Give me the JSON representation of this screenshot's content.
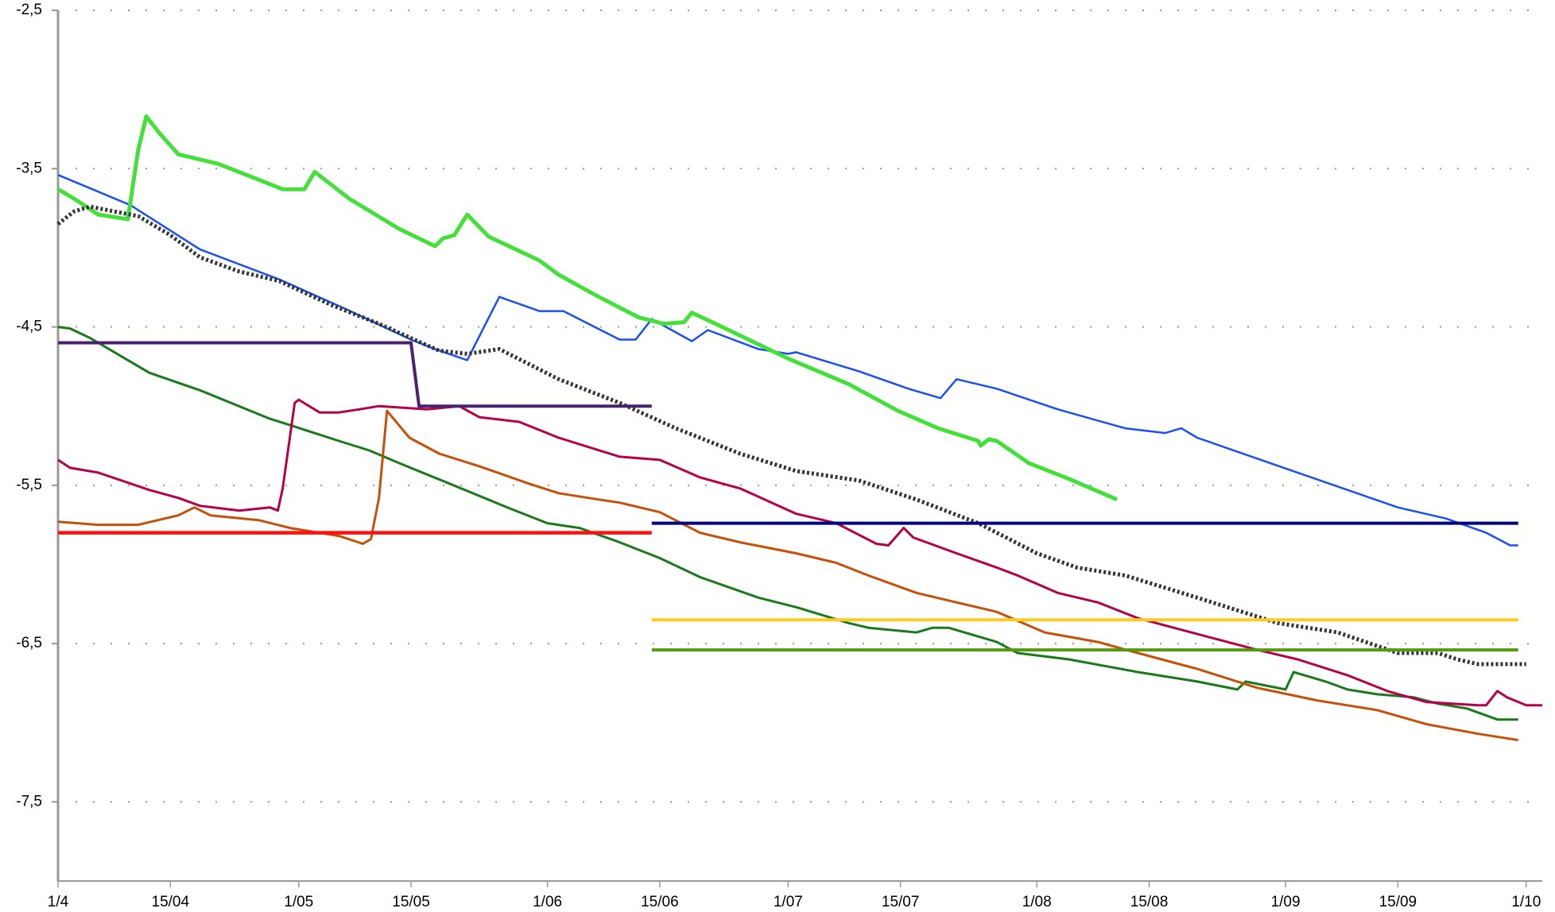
{
  "chart_data": {
    "type": "line",
    "xlim": [
      0,
      185
    ],
    "xticks": [
      {
        "value": 0,
        "label": "1/4"
      },
      {
        "value": 14,
        "label": "15/04"
      },
      {
        "value": 30,
        "label": "1/05"
      },
      {
        "value": 44,
        "label": "15/05"
      },
      {
        "value": 61,
        "label": "1/06"
      },
      {
        "value": 75,
        "label": "15/06"
      },
      {
        "value": 91,
        "label": "1/07"
      },
      {
        "value": 105,
        "label": "15/07"
      },
      {
        "value": 122,
        "label": "1/08"
      },
      {
        "value": 136,
        "label": "15/08"
      },
      {
        "value": 153,
        "label": "1/09"
      },
      {
        "value": 167,
        "label": "15/09"
      },
      {
        "value": 183,
        "label": "1/10"
      }
    ],
    "ylim": [
      -8,
      -2.5
    ],
    "yticks": [
      {
        "value": -2.5,
        "label": "-2,5"
      },
      {
        "value": -3.5,
        "label": "-3,5"
      },
      {
        "value": -4.5,
        "label": "-4,5"
      },
      {
        "value": -5.5,
        "label": "-5,5"
      },
      {
        "value": -6.5,
        "label": "-6,5"
      },
      {
        "value": -7.5,
        "label": "-7,5"
      }
    ],
    "grid": true,
    "series": [
      {
        "color": "#1a4ff0",
        "width": 2.5,
        "style": "solid",
        "x": [
          0,
          9,
          17.7,
          27.6,
          36,
          44,
          47,
          51,
          53,
          55,
          60,
          63,
          70,
          72,
          74,
          79,
          81,
          87.3,
          91,
          92,
          99.8,
          106,
          110,
          112,
          117,
          124.6,
          133,
          138,
          140,
          142,
          154.5,
          167,
          173,
          178,
          181,
          182
        ],
        "values": [
          -3.54,
          -3.73,
          -4.01,
          -4.2,
          -4.39,
          -4.58,
          -4.64,
          -4.71,
          -4.51,
          -4.31,
          -4.4,
          -4.4,
          -4.58,
          -4.58,
          -4.45,
          -4.59,
          -4.52,
          -4.64,
          -4.67,
          -4.66,
          -4.78,
          -4.89,
          -4.95,
          -4.83,
          -4.89,
          -5.02,
          -5.14,
          -5.17,
          -5.14,
          -5.2,
          -5.42,
          -5.64,
          -5.71,
          -5.8,
          -5.88,
          -5.88
        ]
      },
      {
        "color": "#44e03a",
        "width": 5,
        "style": "solid",
        "x": [
          0,
          2,
          5,
          8.7,
          10,
          11,
          12.7,
          15,
          20,
          25,
          28,
          30.7,
          32,
          36.3,
          42.5,
          47,
          48,
          49.4,
          51,
          53.7,
          60,
          62.4,
          67.4,
          72.4,
          75.5,
          78,
          79,
          83.6,
          91,
          98.5,
          104.7,
          109.7,
          114.7,
          115,
          116,
          117,
          121,
          126,
          132
        ],
        "values": [
          -3.63,
          -3.69,
          -3.79,
          -3.82,
          -3.38,
          -3.17,
          -3.28,
          -3.41,
          -3.47,
          -3.57,
          -3.63,
          -3.63,
          -3.52,
          -3.69,
          -3.88,
          -3.99,
          -3.94,
          -3.92,
          -3.79,
          -3.93,
          -4.08,
          -4.17,
          -4.31,
          -4.44,
          -4.48,
          -4.47,
          -4.41,
          -4.52,
          -4.7,
          -4.86,
          -5.03,
          -5.14,
          -5.22,
          -5.25,
          -5.21,
          -5.22,
          -5.36,
          -5.46,
          -5.59
        ]
      },
      {
        "color": "#333333",
        "width": 5,
        "style": "dotted",
        "x": [
          0,
          2,
          4,
          10,
          14,
          17.7,
          22.6,
          27.6,
          34,
          40,
          47.5,
          51,
          55,
          62.4,
          70,
          77,
          85,
          92,
          99.8,
          107,
          114.7,
          122,
          127,
          133,
          142,
          152,
          159.5,
          167,
          172,
          174.4,
          177,
          183
        ],
        "values": [
          -3.85,
          -3.77,
          -3.74,
          -3.8,
          -3.92,
          -4.06,
          -4.15,
          -4.21,
          -4.36,
          -4.48,
          -4.65,
          -4.67,
          -4.64,
          -4.83,
          -4.98,
          -5.14,
          -5.3,
          -5.41,
          -5.47,
          -5.59,
          -5.74,
          -5.93,
          -6.02,
          -6.07,
          -6.21,
          -6.37,
          -6.43,
          -6.56,
          -6.56,
          -6.6,
          -6.63,
          -6.63
        ]
      },
      {
        "color": "#1a7a1a",
        "width": 3,
        "style": "solid",
        "x": [
          0,
          1.5,
          4,
          11.4,
          17.7,
          26.4,
          28.9,
          35,
          38.8,
          42.5,
          48.8,
          56,
          61,
          65,
          70,
          75,
          80,
          87.3,
          92,
          98.5,
          101,
          107,
          109,
          111,
          117,
          119.6,
          126,
          134.6,
          142,
          147,
          148,
          152,
          153,
          154,
          158,
          160.7,
          164.4,
          169,
          172,
          175.6,
          179.4,
          182
        ],
        "values": [
          -4.5,
          -4.51,
          -4.57,
          -4.79,
          -4.9,
          -5.08,
          -5.12,
          -5.22,
          -5.28,
          -5.36,
          -5.49,
          -5.64,
          -5.74,
          -5.77,
          -5.86,
          -5.96,
          -6.08,
          -6.21,
          -6.27,
          -6.37,
          -6.4,
          -6.43,
          -6.4,
          -6.4,
          -6.49,
          -6.56,
          -6.6,
          -6.68,
          -6.74,
          -6.79,
          -6.74,
          -6.78,
          -6.79,
          -6.68,
          -6.74,
          -6.79,
          -6.82,
          -6.84,
          -6.88,
          -6.91,
          -6.98,
          -6.98
        ]
      },
      {
        "color": "#b5004a",
        "width": 3,
        "style": "solid",
        "x": [
          0,
          1.5,
          5,
          11.4,
          15,
          17.7,
          22.6,
          26.4,
          27.4,
          28,
          29.5,
          30,
          32.6,
          35,
          37.6,
          40,
          46,
          50,
          52.5,
          57.5,
          62.4,
          70,
          75,
          80,
          85,
          92,
          97,
          102,
          103.5,
          105.4,
          106.6,
          112,
          117,
          119.6,
          124.6,
          129.6,
          134.6,
          142,
          149.5,
          154.5,
          160.7,
          165.7,
          170.6,
          177,
          178,
          179.4,
          180.6,
          183,
          185
        ],
        "values": [
          -5.34,
          -5.39,
          -5.42,
          -5.53,
          -5.58,
          -5.63,
          -5.66,
          -5.64,
          -5.66,
          -5.52,
          -4.98,
          -4.96,
          -5.04,
          -5.04,
          -5.02,
          -5.0,
          -5.02,
          -5.0,
          -5.07,
          -5.1,
          -5.2,
          -5.32,
          -5.34,
          -5.45,
          -5.52,
          -5.68,
          -5.74,
          -5.87,
          -5.88,
          -5.77,
          -5.83,
          -5.93,
          -6.02,
          -6.07,
          -6.18,
          -6.24,
          -6.34,
          -6.44,
          -6.54,
          -6.6,
          -6.7,
          -6.8,
          -6.87,
          -6.89,
          -6.89,
          -6.8,
          -6.84,
          -6.89,
          -6.89
        ]
      },
      {
        "color": "#c55008",
        "width": 3,
        "style": "solid",
        "x": [
          0,
          5,
          10,
          15,
          17,
          19,
          25,
          28.9,
          35,
          38,
          39,
          40,
          41,
          43.8,
          47.5,
          52.5,
          58.7,
          62.4,
          67.4,
          70,
          75,
          80,
          85,
          92,
          97,
          101,
          107,
          112,
          117,
          123,
          129.6,
          134.6,
          142,
          149.5,
          157,
          164.4,
          170.6,
          177,
          182
        ],
        "values": [
          -5.73,
          -5.75,
          -5.75,
          -5.69,
          -5.64,
          -5.69,
          -5.72,
          -5.77,
          -5.82,
          -5.87,
          -5.84,
          -5.58,
          -5.03,
          -5.2,
          -5.3,
          -5.38,
          -5.49,
          -5.55,
          -5.59,
          -5.61,
          -5.67,
          -5.8,
          -5.86,
          -5.93,
          -5.99,
          -6.07,
          -6.18,
          -6.24,
          -6.3,
          -6.43,
          -6.49,
          -6.56,
          -6.66,
          -6.78,
          -6.86,
          -6.92,
          -7.01,
          -7.07,
          -7.11
        ]
      },
      {
        "color": "#4a2070",
        "width": 4,
        "style": "solid",
        "x": [
          0,
          44,
          45,
          74
        ],
        "values": [
          -4.6,
          -4.6,
          -5.0,
          -5.0
        ]
      },
      {
        "color": "#ff1010",
        "width": 4.5,
        "style": "solid",
        "x": [
          0,
          74
        ],
        "values": [
          -5.8,
          -5.8
        ]
      },
      {
        "color": "#000080",
        "width": 4,
        "style": "solid",
        "x": [
          74,
          182
        ],
        "values": [
          -5.74,
          -5.74
        ]
      },
      {
        "color": "#ffcc22",
        "width": 4,
        "style": "solid",
        "x": [
          74,
          182
        ],
        "values": [
          -6.35,
          -6.35
        ]
      },
      {
        "color": "#559911",
        "width": 4,
        "style": "solid",
        "x": [
          74,
          182
        ],
        "values": [
          -6.54,
          -6.54
        ]
      }
    ]
  }
}
